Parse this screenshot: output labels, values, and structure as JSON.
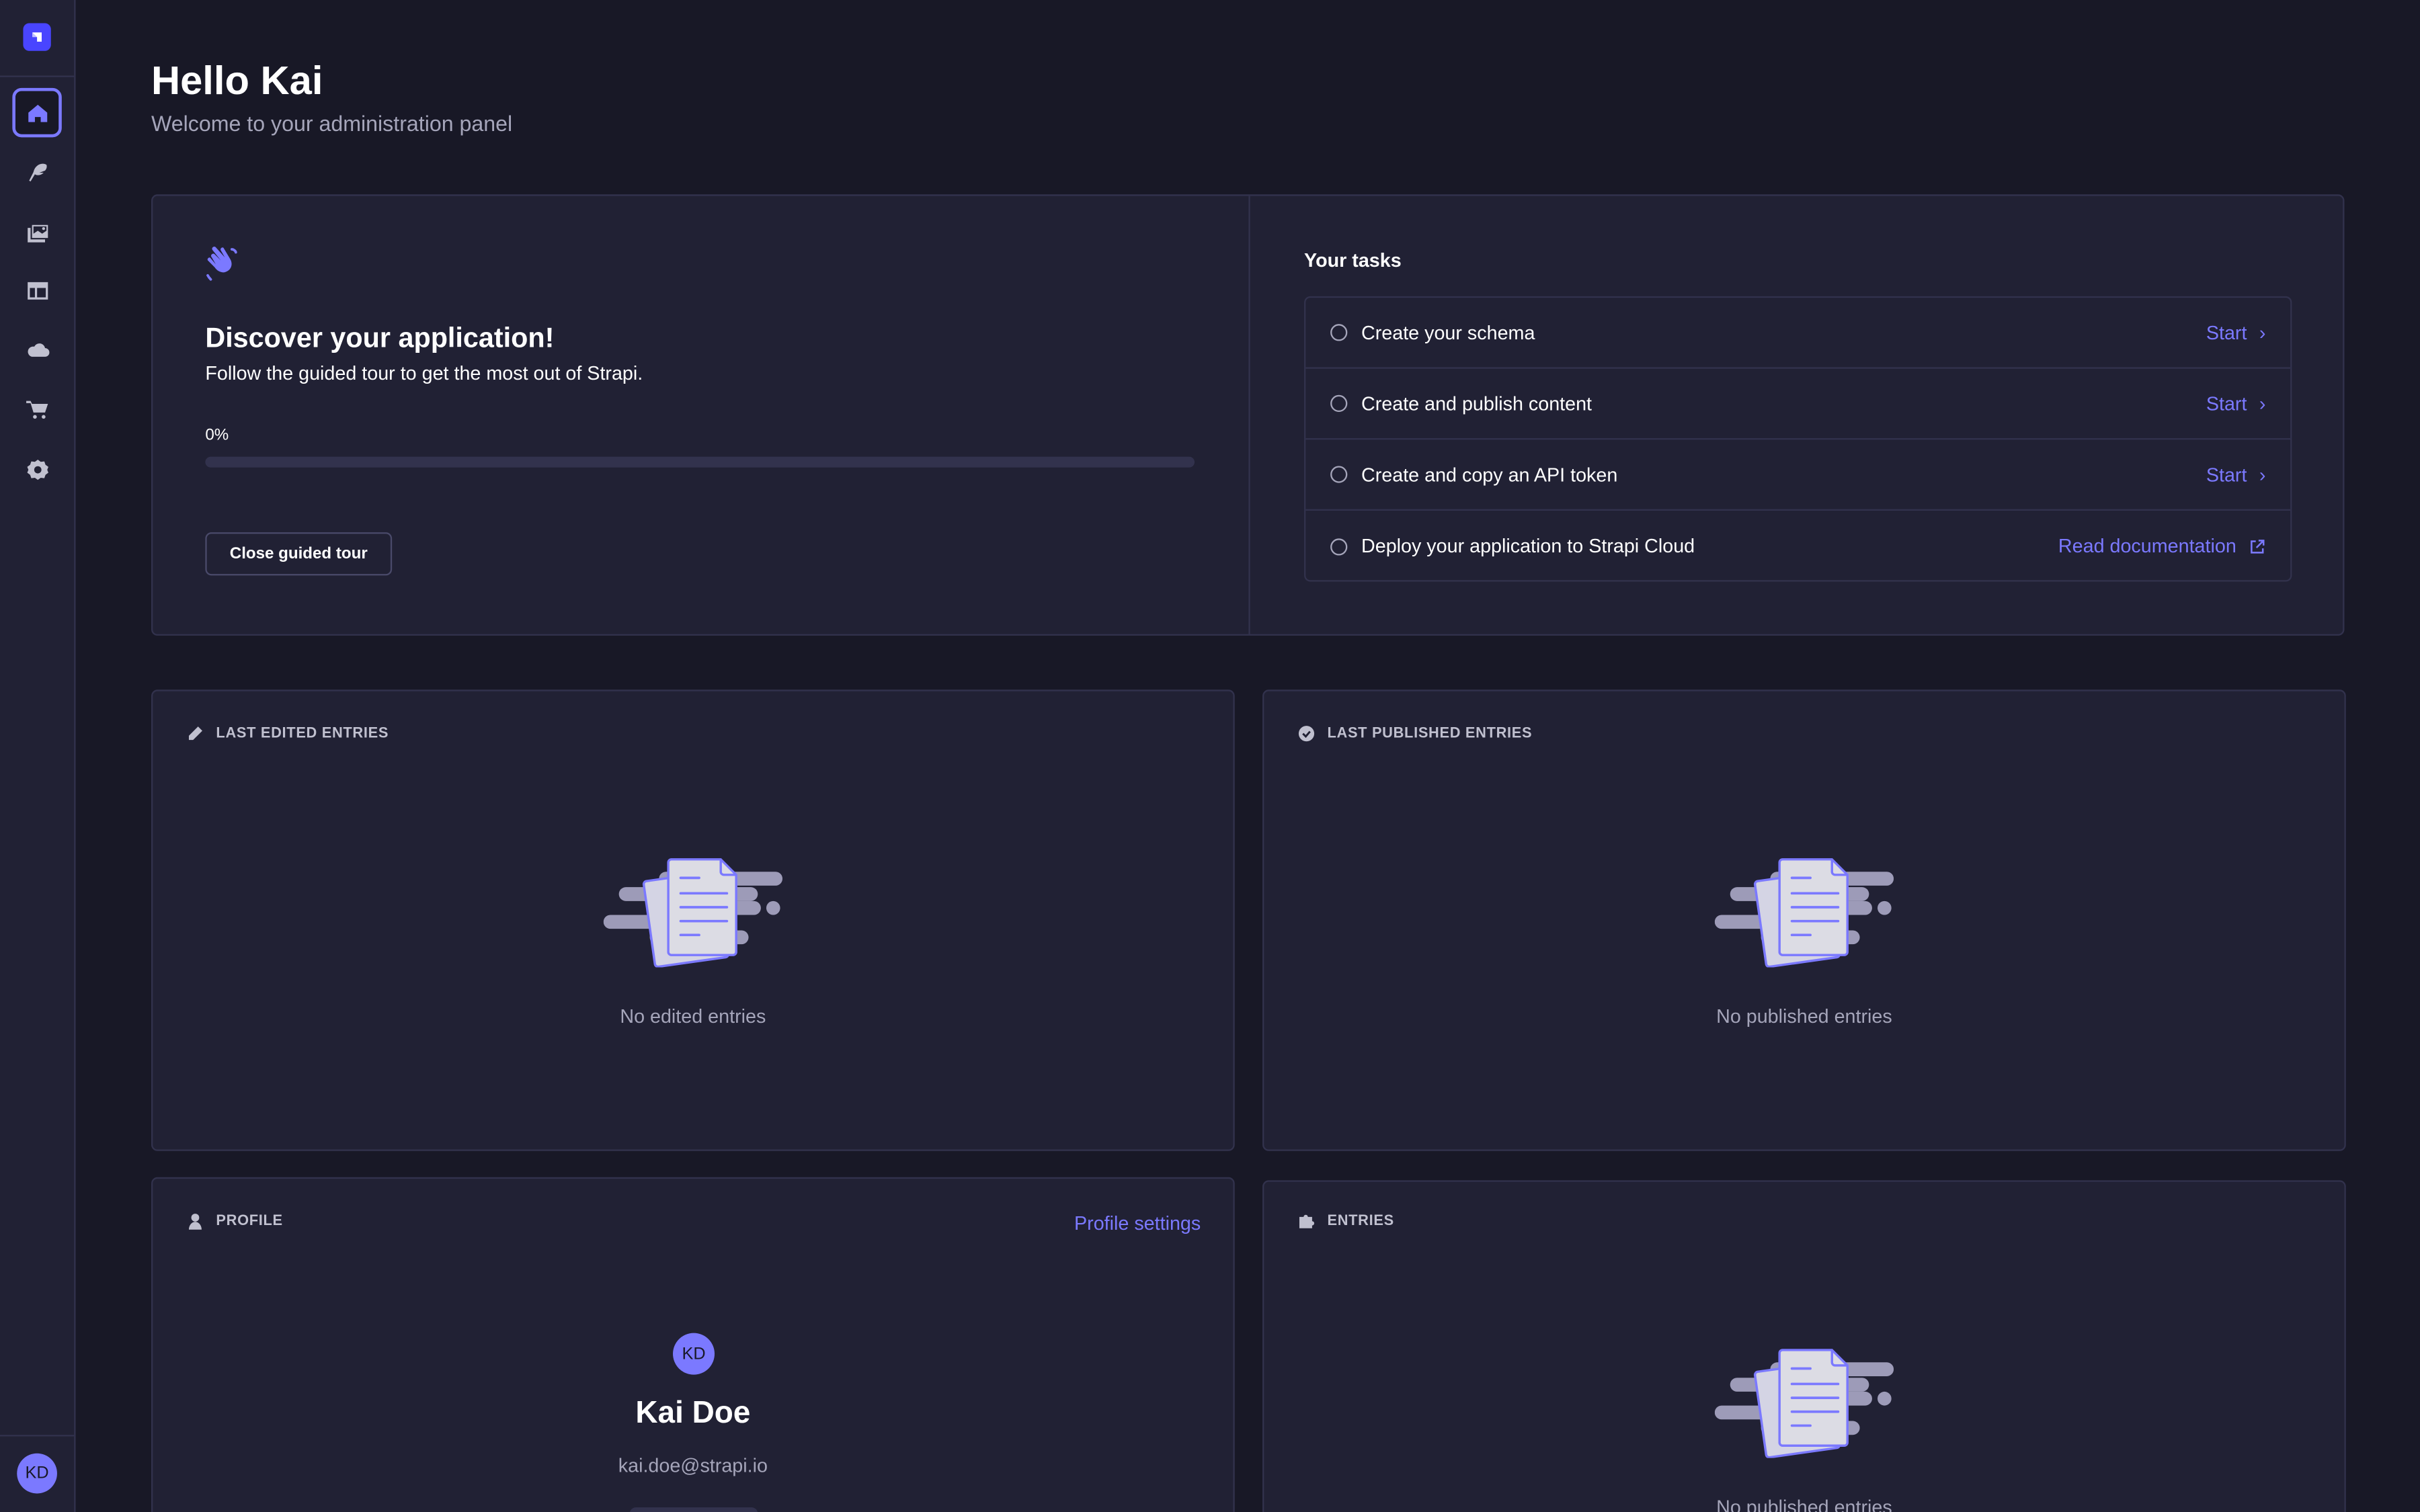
{
  "sidebar": {
    "logo": "strapi-logo",
    "items": [
      {
        "name": "home",
        "icon": "home-icon",
        "active": true
      },
      {
        "name": "content-manager",
        "icon": "feather-icon"
      },
      {
        "name": "media-library",
        "icon": "images-icon"
      },
      {
        "name": "content-type-builder",
        "icon": "layout-icon"
      },
      {
        "name": "deploy",
        "icon": "cloud-icon"
      },
      {
        "name": "marketplace",
        "icon": "cart-icon"
      },
      {
        "name": "settings",
        "icon": "gear-icon"
      }
    ],
    "user_initials": "KD"
  },
  "header": {
    "title": "Hello Kai",
    "subtitle": "Welcome to your administration panel"
  },
  "guided_tour": {
    "title": "Discover your application!",
    "description": "Follow the guided tour to get the most out of Strapi.",
    "progress_label": "0%",
    "progress": 0,
    "close_label": "Close guided tour",
    "tasks_title": "Your tasks",
    "tasks": [
      {
        "label": "Create your schema",
        "action": "Start",
        "done": false
      },
      {
        "label": "Create and publish content",
        "action": "Start",
        "done": false
      },
      {
        "label": "Create and copy an API token",
        "action": "Start",
        "done": false
      },
      {
        "label": "Deploy your application to Strapi Cloud",
        "action": "Read documentation",
        "done": false
      }
    ]
  },
  "cards": {
    "last_edited": {
      "title": "LAST EDITED ENTRIES",
      "empty": "No edited entries"
    },
    "last_published": {
      "title": "LAST PUBLISHED ENTRIES",
      "empty": "No published entries"
    },
    "profile": {
      "title": "PROFILE",
      "settings_link": "Profile settings",
      "initials": "KD",
      "name": "Kai Doe",
      "email": "kai.doe@strapi.io"
    },
    "entries": {
      "title": "ENTRIES",
      "empty": "No published entries"
    }
  },
  "colors": {
    "primary": "#7b79ff",
    "brand": "#4945ff",
    "background": "#181826",
    "panel": "#212134",
    "border": "#32324d"
  }
}
